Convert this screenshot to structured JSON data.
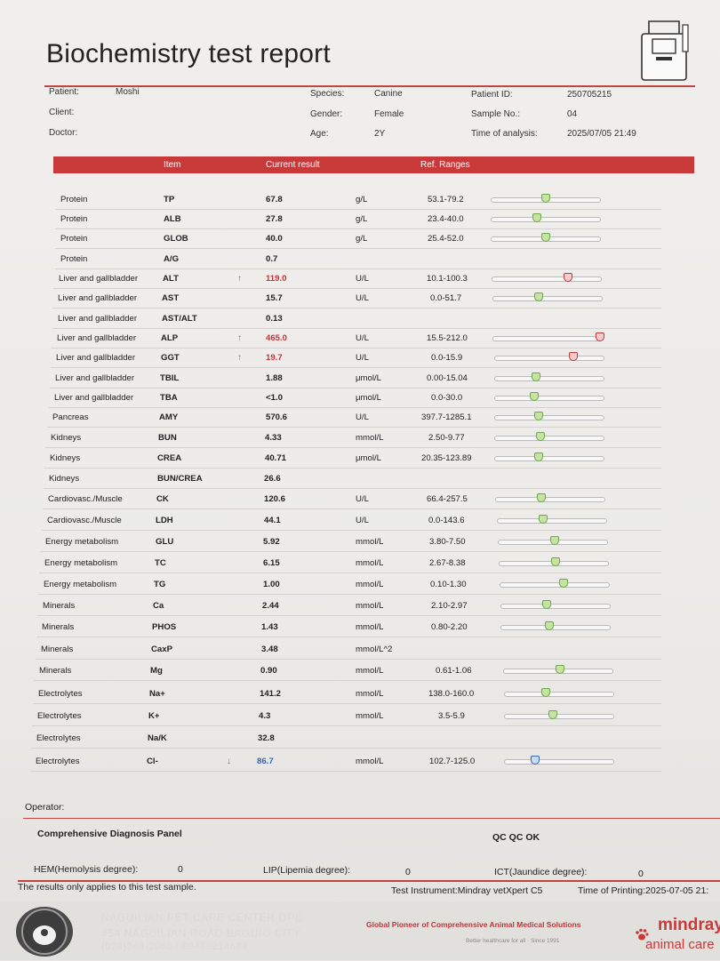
{
  "report": {
    "title": "Biochemistry test report"
  },
  "meta": {
    "patient_label": "Patient:",
    "patient": "Moshi",
    "client_label": "Client:",
    "client": "",
    "doctor_label": "Doctor:",
    "doctor": "",
    "species_label": "Species:",
    "species": "Canine",
    "gender_label": "Gender:",
    "gender": "Female",
    "age_label": "Age:",
    "age": "2Y",
    "patient_id_label": "Patient ID:",
    "patient_id": "250705215",
    "sample_label": "Sample No.:",
    "sample": "04",
    "time_label": "Time of analysis:",
    "time": "2025/07/05 21:49"
  },
  "table_header": {
    "item": "Item",
    "result": "Current result",
    "ref": "Ref. Ranges"
  },
  "rows": [
    {
      "cat": "Protein",
      "abbr": "TP",
      "flag": "",
      "result": "67.8",
      "status": "normal",
      "unit": "g/L",
      "ref": "53.1-79.2",
      "pos": 0.5
    },
    {
      "cat": "Protein",
      "abbr": "ALB",
      "flag": "",
      "result": "27.8",
      "status": "normal",
      "unit": "g/L",
      "ref": "23.4-40.0",
      "pos": 0.42
    },
    {
      "cat": "Protein",
      "abbr": "GLOB",
      "flag": "",
      "result": "40.0",
      "status": "normal",
      "unit": "g/L",
      "ref": "25.4-52.0",
      "pos": 0.5
    },
    {
      "cat": "Protein",
      "abbr": "A/G",
      "flag": "",
      "result": "0.7",
      "status": "none",
      "unit": "",
      "ref": ""
    },
    {
      "cat": "Liver and gallbladder",
      "abbr": "ALT",
      "flag": "↑",
      "result": "119.0",
      "status": "high",
      "unit": "U/L",
      "ref": "10.1-100.3",
      "pos": 0.7
    },
    {
      "cat": "Liver and gallbladder",
      "abbr": "AST",
      "flag": "",
      "result": "15.7",
      "status": "normal",
      "unit": "U/L",
      "ref": "0.0-51.7",
      "pos": 0.42
    },
    {
      "cat": "Liver and gallbladder",
      "abbr": "AST/ALT",
      "flag": "",
      "result": "0.13",
      "status": "none",
      "unit": "",
      "ref": ""
    },
    {
      "cat": "Liver and gallbladder",
      "abbr": "ALP",
      "flag": "↑",
      "result": "465.0",
      "status": "high",
      "unit": "U/L",
      "ref": "15.5-212.0",
      "pos": 0.98
    },
    {
      "cat": "Liver and gallbladder",
      "abbr": "GGT",
      "flag": "↑",
      "result": "19.7",
      "status": "high",
      "unit": "U/L",
      "ref": "0.0-15.9",
      "pos": 0.72
    },
    {
      "cat": "Liver and gallbladder",
      "abbr": "TBIL",
      "flag": "",
      "result": "1.88",
      "status": "normal",
      "unit": "μmol/L",
      "ref": "0.00-15.04",
      "pos": 0.38
    },
    {
      "cat": "Liver and gallbladder",
      "abbr": "TBA",
      "flag": "",
      "result": "<1.0",
      "status": "normal",
      "unit": "μmol/L",
      "ref": "0.0-30.0",
      "pos": 0.36
    },
    {
      "cat": "Pancreas",
      "abbr": "AMY",
      "flag": "",
      "result": "570.6",
      "status": "normal",
      "unit": "U/L",
      "ref": "397.7-1285.1",
      "pos": 0.4
    },
    {
      "cat": "Kidneys",
      "abbr": "BUN",
      "flag": "",
      "result": "4.33",
      "status": "normal",
      "unit": "mmol/L",
      "ref": "2.50-9.77",
      "pos": 0.42
    },
    {
      "cat": "Kidneys",
      "abbr": "CREA",
      "flag": "",
      "result": "40.71",
      "status": "normal",
      "unit": "μmol/L",
      "ref": "20.35-123.89",
      "pos": 0.4
    },
    {
      "cat": "Kidneys",
      "abbr": "BUN/CREA",
      "flag": "",
      "result": "26.6",
      "status": "none",
      "unit": "",
      "ref": ""
    },
    {
      "cat": "Cardiovasc./Muscle",
      "abbr": "CK",
      "flag": "",
      "result": "120.6",
      "status": "normal",
      "unit": "U/L",
      "ref": "66.4-257.5",
      "pos": 0.42
    },
    {
      "cat": "Cardiovasc./Muscle",
      "abbr": "LDH",
      "flag": "",
      "result": "44.1",
      "status": "normal",
      "unit": "U/L",
      "ref": "0.0-143.6",
      "pos": 0.42
    },
    {
      "cat": "Energy metabolism",
      "abbr": "GLU",
      "flag": "",
      "result": "5.92",
      "status": "normal",
      "unit": "mmol/L",
      "ref": "3.80-7.50",
      "pos": 0.52
    },
    {
      "cat": "Energy metabolism",
      "abbr": "TC",
      "flag": "",
      "result": "6.15",
      "status": "normal",
      "unit": "mmol/L",
      "ref": "2.67-8.38",
      "pos": 0.52
    },
    {
      "cat": "Energy metabolism",
      "abbr": "TG",
      "flag": "",
      "result": "1.00",
      "status": "normal",
      "unit": "mmol/L",
      "ref": "0.10-1.30",
      "pos": 0.58
    },
    {
      "cat": "Minerals",
      "abbr": "Ca",
      "flag": "",
      "result": "2.44",
      "status": "normal",
      "unit": "mmol/L",
      "ref": "2.10-2.97",
      "pos": 0.42
    },
    {
      "cat": "Minerals",
      "abbr": "PHOS",
      "flag": "",
      "result": "1.43",
      "status": "normal",
      "unit": "mmol/L",
      "ref": "0.80-2.20",
      "pos": 0.44
    },
    {
      "cat": "Minerals",
      "abbr": "CaxP",
      "flag": "",
      "result": "3.48",
      "status": "none",
      "unit": "mmol/L^2",
      "ref": ""
    },
    {
      "cat": "Minerals",
      "abbr": "Mg",
      "flag": "",
      "result": "0.90",
      "status": "normal",
      "unit": "mmol/L",
      "ref": "0.61-1.06",
      "pos": 0.52
    },
    {
      "cat": "Electrolytes",
      "abbr": "Na+",
      "flag": "",
      "result": "141.2",
      "status": "normal",
      "unit": "mmol/L",
      "ref": "138.0-160.0",
      "pos": 0.38
    },
    {
      "cat": "Electrolytes",
      "abbr": "K+",
      "flag": "",
      "result": "4.3",
      "status": "normal",
      "unit": "mmol/L",
      "ref": "3.5-5.9",
      "pos": 0.44
    },
    {
      "cat": "Electrolytes",
      "abbr": "Na/K",
      "flag": "",
      "result": "32.8",
      "status": "none",
      "unit": "",
      "ref": ""
    },
    {
      "cat": "Electrolytes",
      "abbr": "Cl-",
      "flag": "↓",
      "result": "86.7",
      "status": "low",
      "unit": "mmol/L",
      "ref": "102.7-125.0",
      "pos": 0.28
    }
  ],
  "footer": {
    "operator_label": "Operator:",
    "panel": "Comprehensive Diagnosis Panel",
    "qc": "QC QC OK",
    "hem_label": "HEM(Hemolysis degree):",
    "hem": "0",
    "lip_label": "LIP(Lipemia degree):",
    "lip": "0",
    "ict_label": "ICT(Jaundice degree):",
    "ict": "0",
    "note": "The results only applies to this test sample.",
    "instrument": "Test Instrument:Mindray vetXpert C5",
    "printed": "Time of Printing:2025-07-05 21:"
  },
  "branding": {
    "clinic_name": "NAGUILIAN PET CARE CENTER OPC",
    "clinic_address": "#54 NAGUILIAN ROAD BAGUIO CITY",
    "clinic_phone": "(074)244-2066 / 09479214634",
    "slogan": "Global Pioneer of Comprehensive Animal Medical Solutions",
    "tagline": "Better healthcare for all · Since 1991",
    "brand": "mindray",
    "brand_sub": "animal care",
    "seal_text": "NAGUILIAN PET CARE CENTER"
  },
  "colors": {
    "accent": "#c8393a",
    "high": "#c0353a",
    "low": "#3668b8",
    "normal_marker": "#6aa84f"
  }
}
